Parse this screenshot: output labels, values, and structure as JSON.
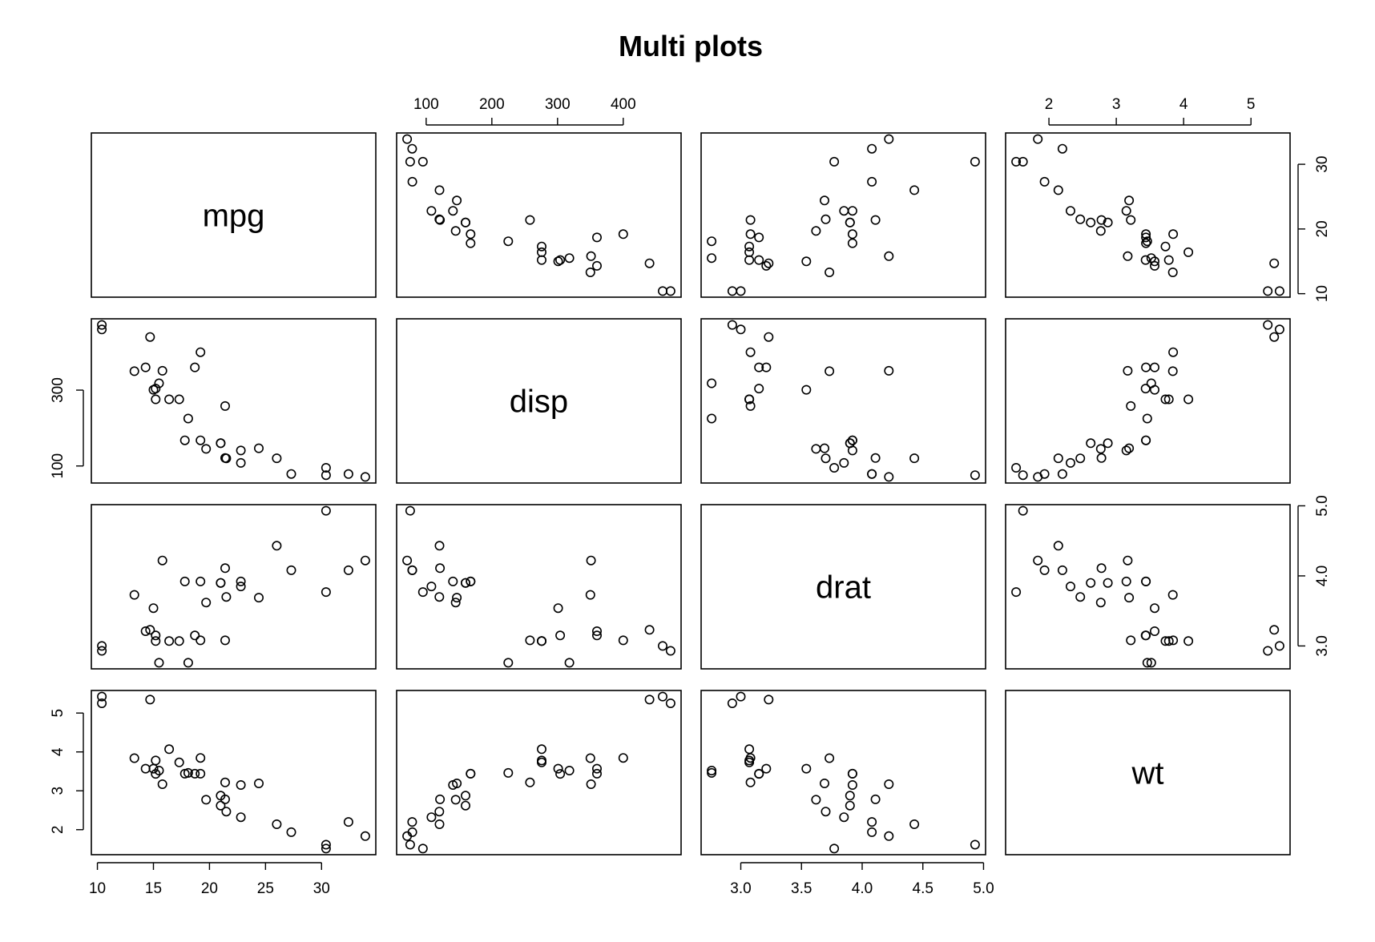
{
  "chart_data": {
    "type": "scatter-matrix",
    "title": "Multi plots",
    "variables": [
      "mpg",
      "disp",
      "drat",
      "wt"
    ],
    "axes": {
      "mpg": {
        "range": [
          10.4,
          33.9
        ],
        "ticks": [
          10,
          15,
          20,
          25,
          30
        ]
      },
      "disp": {
        "range": [
          71.1,
          472.0
        ],
        "ticks": [
          100,
          300
        ],
        "top_ticks": [
          100,
          200,
          300,
          400
        ]
      },
      "drat": {
        "range": [
          2.76,
          4.93
        ],
        "ticks": [
          3.0,
          3.5,
          4.0,
          4.5,
          5.0
        ],
        "right_ticks": [
          3.0,
          4.0,
          5.0
        ]
      },
      "wt": {
        "range": [
          1.513,
          5.424
        ],
        "ticks": [
          2,
          3,
          4,
          5
        ]
      }
    },
    "tick_labels": {
      "mpg_bottom": [
        "10",
        "15",
        "20",
        "25",
        "30"
      ],
      "mpg_right": [
        "10",
        "20",
        "30"
      ],
      "disp_top": [
        "100",
        "200",
        "300",
        "400"
      ],
      "disp_left": [
        "100",
        "300"
      ],
      "drat_bottom": [
        "3.0",
        "3.5",
        "4.0",
        "4.5",
        "5.0"
      ],
      "drat_right": [
        "3.0",
        "4.0",
        "5.0"
      ],
      "wt_top": [
        "2",
        "3",
        "4",
        "5"
      ],
      "wt_left": [
        "2",
        "3",
        "4",
        "5"
      ]
    },
    "grid": false,
    "points": {
      "mpg": [
        21.0,
        21.0,
        22.8,
        21.4,
        18.7,
        18.1,
        14.3,
        24.4,
        22.8,
        19.2,
        17.8,
        16.4,
        17.3,
        15.2,
        10.4,
        10.4,
        14.7,
        32.4,
        30.4,
        33.9,
        21.5,
        15.5,
        15.2,
        13.3,
        19.2,
        27.3,
        26.0,
        30.4,
        15.8,
        19.7,
        15.0,
        21.4
      ],
      "disp": [
        160,
        160,
        108,
        258,
        360,
        225,
        360,
        146.7,
        140.8,
        167.6,
        167.6,
        275.8,
        275.8,
        275.8,
        472,
        460,
        440,
        78.7,
        75.7,
        71.1,
        120.1,
        318,
        304,
        350,
        400,
        79,
        120.3,
        95.1,
        351,
        145,
        301,
        121
      ],
      "drat": [
        3.9,
        3.9,
        3.85,
        3.08,
        3.15,
        2.76,
        3.21,
        3.69,
        3.92,
        3.92,
        3.92,
        3.07,
        3.07,
        3.07,
        2.93,
        3.0,
        3.23,
        4.08,
        4.93,
        4.22,
        3.7,
        2.76,
        3.15,
        3.73,
        3.08,
        4.08,
        4.43,
        3.77,
        4.22,
        3.62,
        3.54,
        4.11
      ],
      "wt": [
        2.62,
        2.875,
        2.32,
        3.215,
        3.44,
        3.46,
        3.57,
        3.19,
        3.15,
        3.44,
        3.44,
        4.07,
        3.73,
        3.78,
        5.25,
        5.424,
        5.345,
        2.2,
        1.615,
        1.835,
        2.465,
        3.52,
        3.435,
        3.84,
        3.845,
        1.935,
        2.14,
        1.513,
        3.17,
        2.77,
        3.57,
        2.78
      ]
    }
  }
}
